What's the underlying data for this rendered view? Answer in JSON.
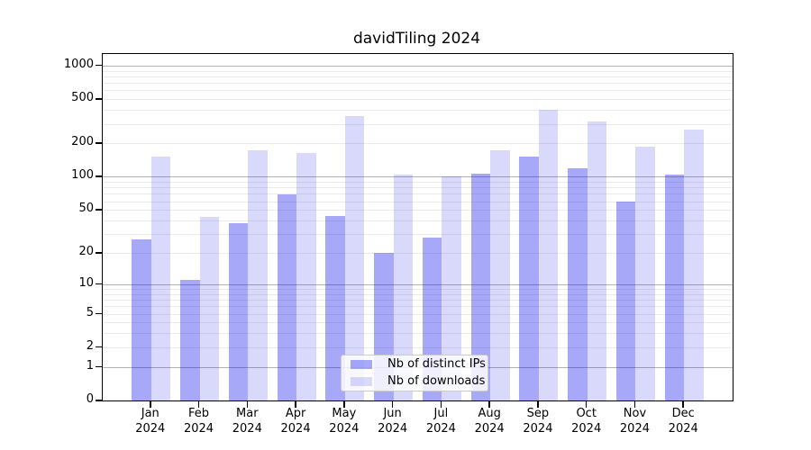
{
  "chart_data": {
    "type": "bar",
    "title": "davidTiling 2024",
    "categories": [
      "Jan",
      "Feb",
      "Mar",
      "Apr",
      "May",
      "Jun",
      "Jul",
      "Aug",
      "Sep",
      "Oct",
      "Nov",
      "Dec"
    ],
    "year_label": "2024",
    "series": [
      {
        "name": "Nb of distinct IPs",
        "color": "rgba(0,0,238,0.34)",
        "values": [
          27,
          11,
          38,
          69,
          44,
          20,
          28,
          106,
          152,
          120,
          60,
          104
        ]
      },
      {
        "name": "Nb of downloads",
        "color": "rgba(0,0,238,0.15)",
        "values": [
          152,
          43,
          175,
          165,
          355,
          105,
          100,
          175,
          400,
          315,
          188,
          268
        ]
      }
    ],
    "yscale": "log1p",
    "ylim": [
      0,
      1270
    ],
    "yticks": [
      1000,
      500,
      200,
      100,
      50,
      20,
      10,
      5,
      2,
      1,
      0
    ],
    "grid": {
      "major_ticks": [
        1,
        10,
        100,
        1000
      ],
      "major_color": "#b3b3b3",
      "minor_color": "#ebebeb"
    },
    "legend_position": "lower-center"
  }
}
